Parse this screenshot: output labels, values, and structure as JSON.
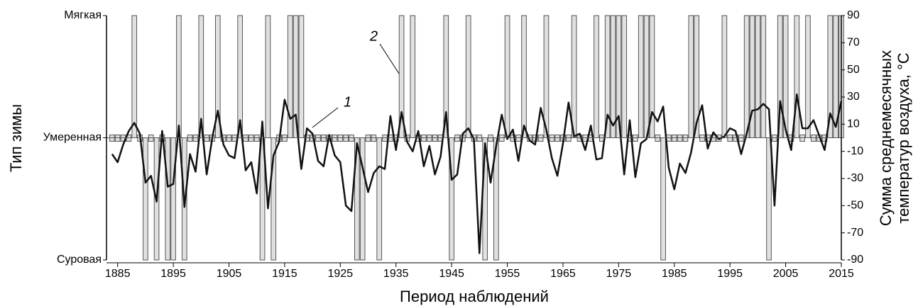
{
  "chart_data": {
    "type": "bar_line",
    "xlabel": "Период наблюдений",
    "ylabel": "Тип зимы",
    "y2label": [
      "Сумма среднемесячных",
      "температур воздуха, °С"
    ],
    "annotations": [
      "1",
      "2"
    ],
    "x": [
      1884,
      1885,
      1886,
      1887,
      1888,
      1889,
      1890,
      1891,
      1892,
      1893,
      1894,
      1895,
      1896,
      1897,
      1898,
      1899,
      1900,
      1901,
      1902,
      1903,
      1904,
      1905,
      1906,
      1907,
      1908,
      1909,
      1910,
      1911,
      1912,
      1913,
      1914,
      1915,
      1916,
      1917,
      1918,
      1919,
      1920,
      1921,
      1922,
      1923,
      1924,
      1925,
      1926,
      1927,
      1928,
      1929,
      1930,
      1931,
      1932,
      1933,
      1934,
      1935,
      1936,
      1937,
      1938,
      1939,
      1940,
      1941,
      1942,
      1943,
      1944,
      1945,
      1946,
      1947,
      1948,
      1949,
      1950,
      1951,
      1952,
      1953,
      1954,
      1955,
      1956,
      1957,
      1958,
      1959,
      1960,
      1961,
      1962,
      1963,
      1964,
      1965,
      1966,
      1967,
      1968,
      1969,
      1970,
      1971,
      1972,
      1973,
      1974,
      1975,
      1976,
      1977,
      1978,
      1979,
      1980,
      1981,
      1982,
      1983,
      1984,
      1985,
      1986,
      1987,
      1988,
      1989,
      1990,
      1991,
      1992,
      1993,
      1994,
      1995,
      1996,
      1997,
      1998,
      1999,
      2000,
      2001,
      2002,
      2003,
      2004,
      2005,
      2006,
      2007,
      2008,
      2009,
      2010,
      2011,
      2012,
      2013,
      2014,
      2015
    ],
    "series": [
      {
        "kind": "bar",
        "color": "#e0e0e0",
        "values": [
          0,
          0,
          0,
          0,
          1,
          0,
          -1,
          0,
          -1,
          0,
          -1,
          -1,
          1,
          -1,
          0,
          0,
          1,
          0,
          0,
          1,
          0,
          0,
          0,
          1,
          0,
          0,
          0,
          -1,
          1,
          -1,
          0,
          0,
          1,
          1,
          1,
          0,
          0,
          0,
          0,
          0,
          0,
          0,
          0,
          0,
          -1,
          -1,
          0,
          0,
          -1,
          0,
          0,
          0,
          1,
          0,
          1,
          0,
          0,
          0,
          0,
          0,
          1,
          -1,
          0,
          0,
          1,
          0,
          0,
          -1,
          0,
          -1,
          0,
          1,
          0,
          0,
          1,
          0,
          0,
          0,
          1,
          0,
          0,
          0,
          0,
          1,
          0,
          0,
          0,
          1,
          0,
          1,
          1,
          1,
          1,
          0,
          0,
          1,
          1,
          1,
          0,
          -1,
          0,
          0,
          0,
          0,
          1,
          1,
          0,
          0,
          0,
          0,
          1,
          0,
          0,
          0,
          1,
          1,
          1,
          1,
          -1,
          0,
          1,
          1,
          0,
          1,
          0,
          1,
          0,
          0,
          0,
          1,
          1,
          1
        ]
      },
      {
        "kind": "line",
        "axis": "y2",
        "color": "#111111",
        "values": [
          -12,
          -18,
          -5,
          5,
          11,
          3,
          -33,
          -28,
          -47,
          5,
          -36,
          -34,
          9,
          -51,
          -12,
          -25,
          14,
          -27,
          0,
          20,
          -5,
          -13,
          -15,
          13,
          -24,
          -18,
          -41,
          12,
          -52,
          -13,
          -3,
          28,
          14,
          17,
          -23,
          7,
          3,
          -17,
          -21,
          2,
          -13,
          -18,
          -50,
          -54,
          -4,
          -22,
          -40,
          -26,
          -21,
          -23,
          16,
          -9,
          19,
          -3,
          -10,
          5,
          -21,
          -6,
          -27,
          -14,
          19,
          -31,
          -27,
          3,
          7,
          -1,
          -85,
          -4,
          -33,
          -6,
          17,
          -1,
          6,
          -17,
          9,
          -2,
          -5,
          22,
          6,
          -15,
          -28,
          -4,
          26,
          1,
          3,
          -9,
          9,
          -16,
          -15,
          17,
          9,
          16,
          -27,
          13,
          -29,
          -4,
          -1,
          19,
          12,
          23,
          -22,
          -38,
          -19,
          -26,
          -11,
          11,
          24,
          -8,
          4,
          -1,
          1,
          7,
          5,
          -12,
          3,
          20,
          21,
          25,
          21,
          -50,
          27,
          6,
          -9,
          32,
          7,
          7,
          13,
          2,
          -9,
          18,
          8,
          27
        ]
      }
    ],
    "xlim": [
      1883,
      2015
    ],
    "xticks": [
      1885,
      1895,
      1905,
      1915,
      1925,
      1935,
      1945,
      1955,
      1965,
      1975,
      1985,
      1995,
      2005,
      2015
    ],
    "ylim": [
      -1,
      1
    ],
    "yticks": [
      {
        "value": -1,
        "label": "Суровая"
      },
      {
        "value": 0,
        "label": "Умеренная"
      },
      {
        "value": 1,
        "label": "Мягкая"
      }
    ],
    "y2lim": [
      -90,
      90
    ],
    "y2ticks": [
      -90,
      -70,
      -50,
      -30,
      -10,
      10,
      30,
      50,
      70,
      90
    ]
  }
}
